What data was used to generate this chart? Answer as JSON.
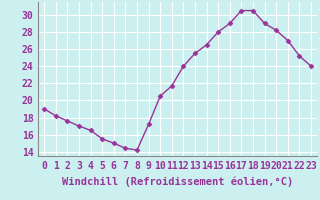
{
  "x": [
    0,
    1,
    2,
    3,
    4,
    5,
    6,
    7,
    8,
    9,
    10,
    11,
    12,
    13,
    14,
    15,
    16,
    17,
    18,
    19,
    20,
    21,
    22,
    23
  ],
  "y": [
    19.0,
    18.2,
    17.6,
    17.0,
    16.5,
    15.5,
    15.0,
    14.4,
    14.2,
    17.2,
    20.5,
    21.7,
    24.0,
    25.5,
    26.5,
    28.0,
    29.0,
    30.5,
    30.5,
    29.0,
    28.2,
    27.0,
    25.2,
    24.0
  ],
  "line_color": "#993399",
  "marker": "D",
  "marker_size": 2.5,
  "line_width": 1.0,
  "xlabel": "Windchill (Refroidissement éolien,°C)",
  "xlabel_fontsize": 7.5,
  "ylabel_ticks": [
    14,
    16,
    18,
    20,
    22,
    24,
    26,
    28,
    30
  ],
  "ylim": [
    13.5,
    31.5
  ],
  "xlim": [
    -0.5,
    23.5
  ],
  "bg_color": "#ccf0f0",
  "grid_color": "#ffffff",
  "tick_label_fontsize": 7,
  "spine_color": "#888888"
}
